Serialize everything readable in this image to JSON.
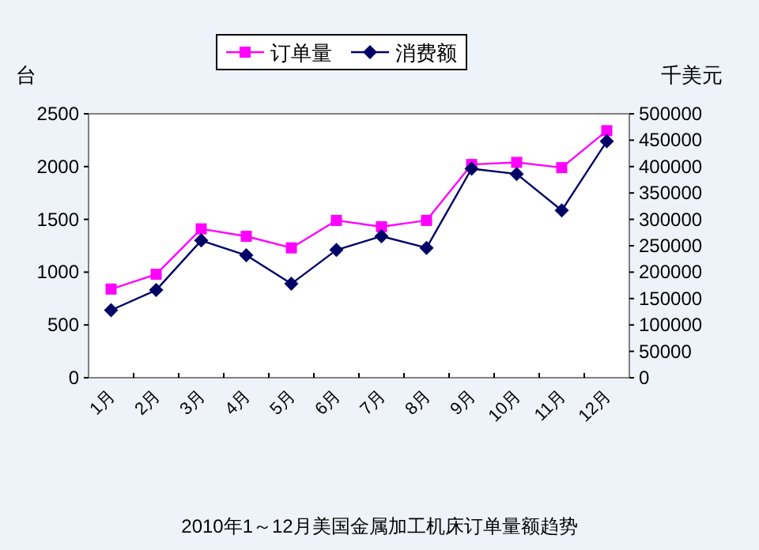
{
  "chart_data": {
    "type": "line",
    "title": "2010年1～12月美国金属加工机床订单量额趋势",
    "ylabel": "台",
    "y2label": "千美元",
    "categories": [
      "1月",
      "2月",
      "3月",
      "4月",
      "5月",
      "6月",
      "7月",
      "8月",
      "9月",
      "10月",
      "11月",
      "12月"
    ],
    "series": [
      {
        "name": "订单量",
        "color": "#ff00ff",
        "marker": "square",
        "values": [
          840,
          980,
          1410,
          1340,
          1230,
          1490,
          1430,
          1490,
          2020,
          2040,
          1990,
          2340
        ]
      },
      {
        "name": "消费额",
        "color": "#000066",
        "marker": "diamond",
        "axis": "y2",
        "values": [
          128000,
          166000,
          260000,
          232000,
          178000,
          242000,
          268000,
          246000,
          396000,
          386000,
          317000,
          448000
        ]
      }
    ],
    "ylim": [
      0,
      2500
    ],
    "yticks": [
      0,
      500,
      1000,
      1500,
      2000,
      2500
    ],
    "y2lim": [
      0,
      500000
    ],
    "y2ticks": [
      0,
      50000,
      100000,
      150000,
      200000,
      250000,
      300000,
      350000,
      400000,
      450000,
      500000
    ],
    "grid": false,
    "legend": "top"
  }
}
